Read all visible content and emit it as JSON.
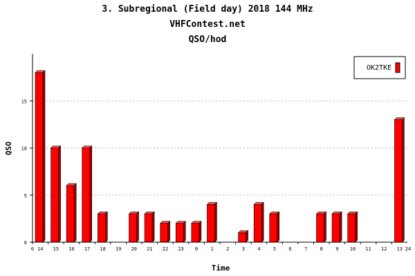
{
  "chart_data": {
    "type": "bar",
    "title_lines": [
      "3. Subregional (Field day) 2018 144 MHz",
      "VHFContest.net",
      "QSO/hod"
    ],
    "xlabel": "Time",
    "ylabel": "QSO",
    "ylim": [
      0,
      20
    ],
    "yticks": [
      0,
      5,
      10,
      15
    ],
    "grid": true,
    "legend_position": "top-right",
    "x_edge_labels": [
      "0",
      "24"
    ],
    "categories": [
      "14",
      "15",
      "16",
      "17",
      "18",
      "19",
      "20",
      "21",
      "22",
      "23",
      "0",
      "1",
      "2",
      "3",
      "4",
      "5",
      "6",
      "7",
      "8",
      "9",
      "10",
      "11",
      "12",
      "13"
    ],
    "series": [
      {
        "name": "OK2TKE",
        "color": "#ff0000",
        "values": [
          18,
          10,
          6,
          10,
          3,
          0,
          3,
          3,
          2,
          2,
          2,
          4,
          0,
          1,
          4,
          3,
          0,
          0,
          3,
          3,
          3,
          0,
          0,
          13
        ]
      }
    ]
  }
}
